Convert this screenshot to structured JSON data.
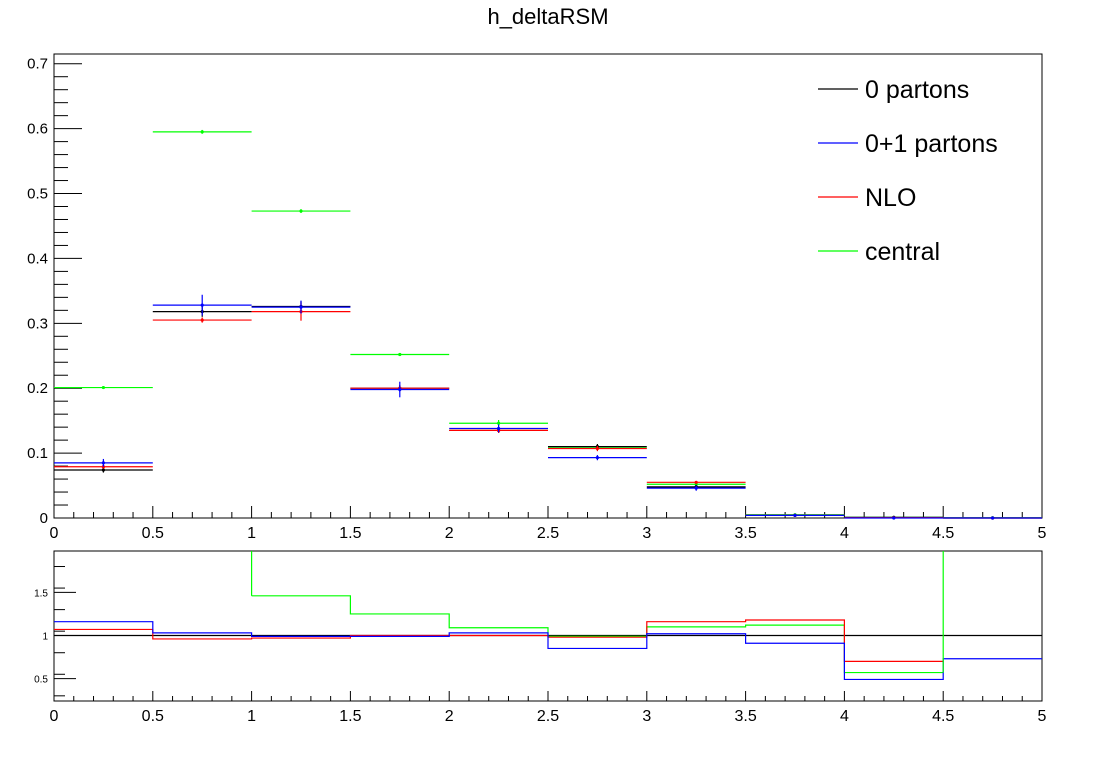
{
  "chart_data": [
    {
      "type": "histogram",
      "title": "h_deltaRSM",
      "bin_edges": [
        0,
        0.5,
        1,
        1.5,
        2,
        2.5,
        3,
        3.5,
        4,
        4.5,
        5
      ],
      "xlim": [
        0,
        5
      ],
      "ylim": [
        0,
        0.715
      ],
      "x_ticks": [
        "0",
        "0.5",
        "1",
        "1.5",
        "2",
        "2.5",
        "3",
        "3.5",
        "4",
        "4.5",
        "5"
      ],
      "y_ticks": [
        "0",
        "0.1",
        "0.2",
        "0.3",
        "0.4",
        "0.5",
        "0.6",
        "0.7"
      ],
      "legend_position": "top-right",
      "series": [
        {
          "name": "0 partons",
          "color": "#000000",
          "values": [
            0.074,
            0.318,
            0.326,
            0.2,
            0.135,
            0.11,
            0.048,
            0.004,
            0.001,
            0.0
          ],
          "errors": [
            0.004,
            0.008,
            0.008,
            0.005,
            0.004,
            0.004,
            0.003,
            0.001,
            0.0005,
            0.0
          ]
        },
        {
          "name": "0+1 partons",
          "color": "#0000ff",
          "values": [
            0.085,
            0.328,
            0.325,
            0.198,
            0.138,
            0.093,
            0.046,
            0.004,
            0.0,
            0.0
          ],
          "errors": [
            0.006,
            0.016,
            0.01,
            0.012,
            0.006,
            0.004,
            0.004,
            0.001,
            0.0,
            0.0
          ]
        },
        {
          "name": "NLO",
          "color": "#ff0000",
          "values": [
            0.079,
            0.305,
            0.318,
            0.2,
            0.135,
            0.107,
            0.055,
            0.004,
            0.0005,
            0.0
          ],
          "errors": [
            0.003,
            0.004,
            0.014,
            0.004,
            0.004,
            0.004,
            0.002,
            0.001,
            0.0002,
            0.0
          ]
        },
        {
          "name": "central",
          "color": "#00ff00",
          "values": [
            0.201,
            0.595,
            0.473,
            0.252,
            0.146,
            0.108,
            0.052,
            0.005,
            0.001,
            0.0005
          ],
          "errors": [
            0.002,
            0.003,
            0.003,
            0.002,
            0.005,
            0.004,
            0.002,
            0.0005,
            0.0003,
            0.0002
          ]
        }
      ]
    },
    {
      "type": "ratio",
      "bin_edges": [
        0,
        0.5,
        1,
        1.5,
        2,
        2.5,
        3,
        3.5,
        4,
        4.5,
        5
      ],
      "xlim": [
        0,
        5
      ],
      "ylim": [
        0.24,
        1.98
      ],
      "x_ticks": [
        "0",
        "0.5",
        "1",
        "1.5",
        "2",
        "2.5",
        "3",
        "3.5",
        "4",
        "4.5",
        "5"
      ],
      "y_ticks": [
        "0.5",
        "1",
        "1.5"
      ],
      "series": [
        {
          "name": "0 partons",
          "color": "#000000",
          "values": [
            1,
            1,
            1,
            1,
            1,
            1,
            1,
            1,
            1,
            1
          ]
        },
        {
          "name": "0+1 partons",
          "color": "#0000ff",
          "values": [
            1.16,
            1.03,
            0.99,
            0.99,
            1.03,
            0.85,
            1.02,
            0.91,
            0.49,
            0.73
          ]
        },
        {
          "name": "NLO",
          "color": "#ff0000",
          "values": [
            1.07,
            0.96,
            0.97,
            1.0,
            1.0,
            0.98,
            1.16,
            1.18,
            0.7,
            null
          ]
        },
        {
          "name": "central",
          "color": "#00ff00",
          "values": [
            null,
            null,
            1.46,
            1.25,
            1.09,
            0.99,
            1.1,
            1.12,
            0.57,
            null
          ]
        }
      ]
    }
  ]
}
